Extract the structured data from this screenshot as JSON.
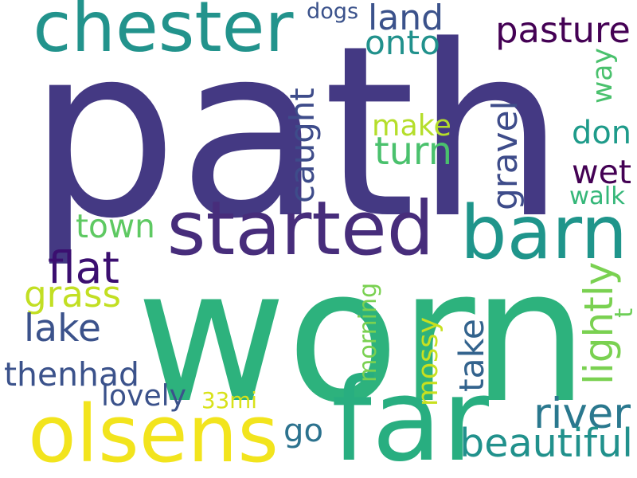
{
  "words": [
    {
      "id": "path",
      "text": "path",
      "color": "#443983"
    },
    {
      "id": "worn",
      "text": "worn",
      "color": "#2db27d"
    },
    {
      "id": "chester",
      "text": "chester",
      "color": "#22938c"
    },
    {
      "id": "started",
      "text": "started",
      "color": "#472d7b"
    },
    {
      "id": "barn",
      "text": "barn",
      "color": "#1f958b"
    },
    {
      "id": "far",
      "text": "far",
      "color": "#28ae80"
    },
    {
      "id": "olsens",
      "text": "olsens",
      "color": "#f2e41d"
    },
    {
      "id": "land",
      "text": "land",
      "color": "#3b528b"
    },
    {
      "id": "onto",
      "text": "onto",
      "color": "#21918c"
    },
    {
      "id": "dogs",
      "text": "dogs",
      "color": "#3b528b"
    },
    {
      "id": "pasture",
      "text": "pasture",
      "color": "#440154"
    },
    {
      "id": "way",
      "text": "way",
      "color": "#4ac16d"
    },
    {
      "id": "make",
      "text": "make",
      "color": "#b5de2b"
    },
    {
      "id": "turn",
      "text": "turn",
      "color": "#4ac16d"
    },
    {
      "id": "caught",
      "text": "caught",
      "color": "#3e4c8a"
    },
    {
      "id": "gravel",
      "text": "gravel",
      "color": "#3e4c8a"
    },
    {
      "id": "don",
      "text": "don",
      "color": "#1e9b8a"
    },
    {
      "id": "wet",
      "text": "wet",
      "color": "#440154"
    },
    {
      "id": "walk",
      "text": "walk",
      "color": "#35b779"
    },
    {
      "id": "town",
      "text": "town",
      "color": "#5ec962"
    },
    {
      "id": "flat",
      "text": "flat",
      "color": "#3b0f70"
    },
    {
      "id": "grass",
      "text": "grass",
      "color": "#c2df23"
    },
    {
      "id": "lake",
      "text": "lake",
      "color": "#3b528b"
    },
    {
      "id": "thenhad",
      "text": "thenhad",
      "color": "#3b528b"
    },
    {
      "id": "lovely",
      "text": "lovely",
      "color": "#3b528b"
    },
    {
      "id": "33mi",
      "text": "33mi",
      "color": "#d8e219"
    },
    {
      "id": "go",
      "text": "go",
      "color": "#2c728e"
    },
    {
      "id": "morning",
      "text": "morning",
      "color": "#7ad151"
    },
    {
      "id": "mossy",
      "text": "mossy",
      "color": "#c8e020"
    },
    {
      "id": "take",
      "text": "take",
      "color": "#33638d"
    },
    {
      "id": "lightly",
      "text": "lightly",
      "color": "#7ad151"
    },
    {
      "id": "t",
      "text": "t",
      "color": "#6ece58"
    },
    {
      "id": "river",
      "text": "river",
      "color": "#2a788e"
    },
    {
      "id": "beautiful",
      "text": "beautiful",
      "color": "#21918c"
    }
  ]
}
